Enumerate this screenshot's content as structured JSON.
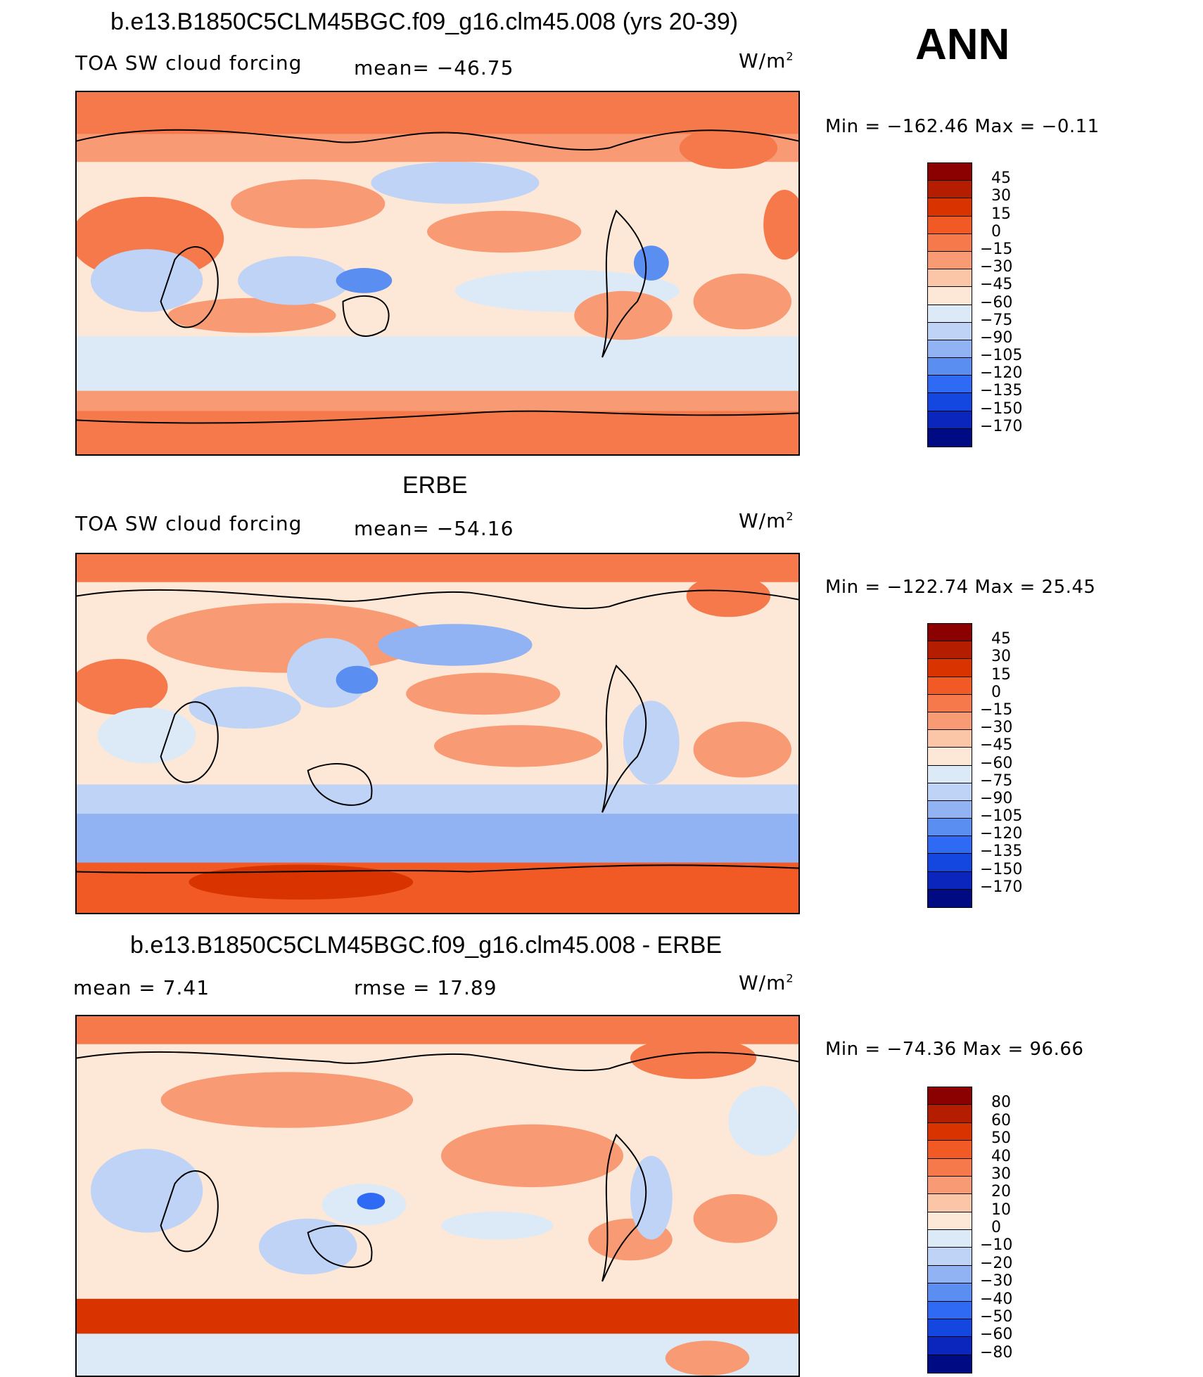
{
  "season": "ANN",
  "panels": [
    {
      "title": "b.e13.B1850C5CLM45BGC.f09_g16.clm45.008 (yrs 20-39)",
      "left_label": "TOA SW cloud forcing",
      "center_label": "mean= −46.75",
      "units": "W/m",
      "units_exp": "2",
      "minmax": "Min  =  −162.46  Max  =    −0.11",
      "colorbar": {
        "labels": [
          "45",
          "30",
          "15",
          "0",
          "−15",
          "−30",
          "−45",
          "−60",
          "−75",
          "−90",
          "−105",
          "−120",
          "−135",
          "−150",
          "−170"
        ],
        "colors": [
          "#8b0000",
          "#b51d00",
          "#d93300",
          "#f15a24",
          "#f5794a",
          "#f89a73",
          "#fbc6a8",
          "#fde7d6",
          "#dceaf8",
          "#bed3f5",
          "#91b3f3",
          "#5b8ef1",
          "#2f6af5",
          "#1447df",
          "#0a26bd",
          "#000b83"
        ]
      }
    },
    {
      "title": "ERBE",
      "left_label": "TOA SW cloud forcing",
      "center_label": "mean= −54.16",
      "units": "W/m",
      "units_exp": "2",
      "minmax": "Min  =  −122.74  Max  =   25.45",
      "colorbar": {
        "labels": [
          "45",
          "30",
          "15",
          "0",
          "−15",
          "−30",
          "−45",
          "−60",
          "−75",
          "−90",
          "−105",
          "−120",
          "−135",
          "−150",
          "−170"
        ],
        "colors": [
          "#8b0000",
          "#b51d00",
          "#d93300",
          "#f15a24",
          "#f5794a",
          "#f89a73",
          "#fbc6a8",
          "#fde7d6",
          "#dceaf8",
          "#bed3f5",
          "#91b3f3",
          "#5b8ef1",
          "#2f6af5",
          "#1447df",
          "#0a26bd",
          "#000b83"
        ]
      }
    },
    {
      "title": "b.e13.B1850C5CLM45BGC.f09_g16.clm45.008 - ERBE",
      "left_label": "mean  =    7.41",
      "center_label": "rmse  =    17.89",
      "units": "W/m",
      "units_exp": "2",
      "minmax": "Min  =  −74.36  Max  =   96.66",
      "colorbar": {
        "labels": [
          "80",
          "60",
          "50",
          "40",
          "30",
          "20",
          "10",
          "0",
          "−10",
          "−20",
          "−30",
          "−40",
          "−50",
          "−60",
          "−80"
        ],
        "colors": [
          "#8b0000",
          "#b51d00",
          "#d93300",
          "#f15a24",
          "#f5794a",
          "#f89a73",
          "#fbc6a8",
          "#fde7d6",
          "#dceaf8",
          "#bed3f5",
          "#91b3f3",
          "#5b8ef1",
          "#2f6af5",
          "#1447df",
          "#0a26bd",
          "#000b83"
        ]
      }
    }
  ]
}
